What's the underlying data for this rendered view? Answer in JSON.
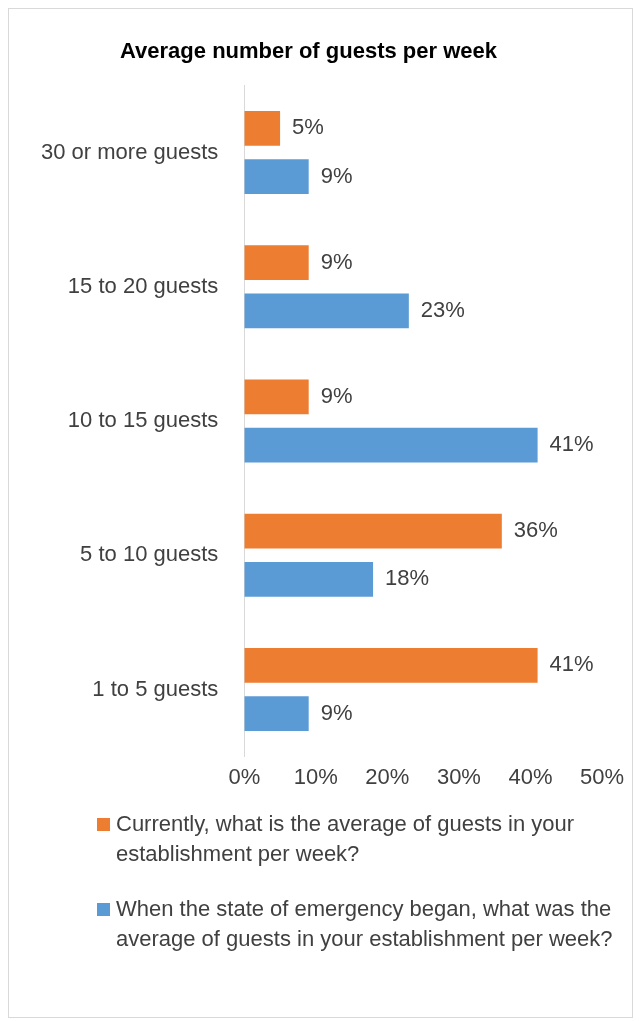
{
  "chart_data": {
    "type": "bar",
    "orientation": "horizontal",
    "title": "Average number of guests per week",
    "categories": [
      "30 or more guests",
      "15 to 20 guests",
      "10 to 15 guests",
      "5 to 10 guests",
      "1 to 5 guests"
    ],
    "series": [
      {
        "name": "Currently, what is the average of guests in your establishment per week?",
        "color": "#ed7d31",
        "values": [
          5,
          9,
          9,
          36,
          41
        ],
        "value_labels": [
          "5%",
          "9%",
          "9%",
          "36%",
          "41%"
        ]
      },
      {
        "name": "When the state of emergency began, what was the average of guests in your establishment per week?",
        "color": "#5b9bd5",
        "values": [
          9,
          23,
          41,
          18,
          9
        ],
        "value_labels": [
          "9%",
          "23%",
          "41%",
          "18%",
          "9%"
        ]
      }
    ],
    "xlim": [
      0,
      50
    ],
    "xticks": [
      {
        "value": 0,
        "label": "0%"
      },
      {
        "value": 10,
        "label": "10%"
      },
      {
        "value": 20,
        "label": "20%"
      },
      {
        "value": 30,
        "label": "30%"
      },
      {
        "value": 40,
        "label": "40%"
      },
      {
        "value": 50,
        "label": "50%"
      }
    ],
    "grid": false,
    "legend": "bottom"
  }
}
